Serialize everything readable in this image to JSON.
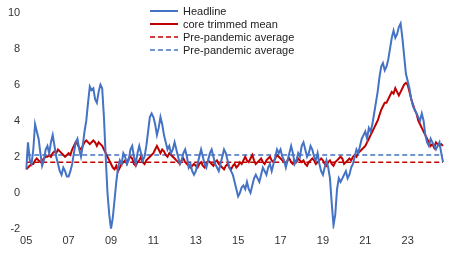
{
  "chart_data": {
    "type": "line",
    "categories": [
      "05",
      null,
      null,
      null,
      null,
      null,
      null,
      null,
      null,
      null,
      null,
      null,
      null,
      null,
      null,
      null,
      null,
      null,
      null,
      null,
      null,
      null,
      null,
      null,
      "07",
      null,
      null,
      null,
      null,
      null,
      null,
      null,
      null,
      null,
      null,
      null,
      null,
      null,
      null,
      null,
      null,
      null,
      null,
      null,
      null,
      null,
      null,
      null,
      "09",
      null,
      null,
      null,
      null,
      null,
      null,
      null,
      null,
      null,
      null,
      null,
      null,
      null,
      null,
      null,
      null,
      null,
      null,
      null,
      null,
      null,
      null,
      null,
      "11",
      null,
      null,
      null,
      null,
      null,
      null,
      null,
      null,
      null,
      null,
      null,
      null,
      null,
      null,
      null,
      null,
      null,
      null,
      null,
      null,
      null,
      null,
      null,
      "13",
      null,
      null,
      null,
      null,
      null,
      null,
      null,
      null,
      null,
      null,
      null,
      null,
      null,
      null,
      null,
      null,
      null,
      null,
      null,
      null,
      null,
      null,
      null,
      "15",
      null,
      null,
      null,
      null,
      null,
      null,
      null,
      null,
      null,
      null,
      null,
      null,
      null,
      null,
      null,
      null,
      null,
      null,
      null,
      null,
      null,
      null,
      null,
      "17",
      null,
      null,
      null,
      null,
      null,
      null,
      null,
      null,
      null,
      null,
      null,
      null,
      null,
      null,
      null,
      null,
      null,
      null,
      null,
      null,
      null,
      null,
      null,
      "19",
      null,
      null,
      null,
      null,
      null,
      null,
      null,
      null,
      null,
      null,
      null,
      null,
      null,
      null,
      null,
      null,
      null,
      null,
      null,
      null,
      null,
      null,
      null,
      "21",
      null,
      null,
      null,
      null,
      null,
      null,
      null,
      null,
      null,
      null,
      null,
      null,
      null,
      null,
      null,
      null,
      null,
      null,
      null,
      null,
      null,
      null,
      null,
      "23",
      null,
      null,
      null,
      null,
      null,
      null,
      null,
      null,
      null,
      null,
      null,
      null,
      null,
      null,
      null,
      null,
      null,
      null,
      null,
      null
    ],
    "series": [
      {
        "name": "Headline",
        "color": "#4472c4",
        "line_style": "solid",
        "values": [
          1.3,
          2.8,
          1.8,
          1.6,
          2.4,
          3.8,
          3.4,
          3.0,
          2.2,
          1.5,
          1.8,
          2.4,
          2.6,
          2.2,
          2.8,
          3.2,
          2.6,
          2.0,
          1.6,
          1.2,
          1.0,
          1.4,
          1.2,
          0.9,
          0.9,
          1.2,
          1.6,
          2.2,
          2.8,
          3.0,
          2.4,
          2.0,
          2.6,
          3.4,
          4.0,
          5.0,
          5.9,
          5.7,
          5.8,
          5.2,
          5.0,
          5.6,
          6.0,
          5.8,
          4.2,
          2.0,
          0.0,
          -1.2,
          -2.0,
          -1.4,
          -0.4,
          0.6,
          1.4,
          1.8,
          1.6,
          2.2,
          2.0,
          1.6,
          1.8,
          2.4,
          2.6,
          2.0,
          1.6,
          2.2,
          2.6,
          2.2,
          1.8,
          2.0,
          2.6,
          3.4,
          4.2,
          4.4,
          4.2,
          3.8,
          3.2,
          3.6,
          4.2,
          3.8,
          3.2,
          2.8,
          2.4,
          2.6,
          2.2,
          2.4,
          2.8,
          2.4,
          2.0,
          1.6,
          1.8,
          2.2,
          2.4,
          2.0,
          1.4,
          1.6,
          1.2,
          1.0,
          1.2,
          1.6,
          2.0,
          2.4,
          2.0,
          1.6,
          1.4,
          1.8,
          2.2,
          2.4,
          2.0,
          1.6,
          1.4,
          1.2,
          1.6,
          2.0,
          2.4,
          2.2,
          1.8,
          1.4,
          1.2,
          1.0,
          0.6,
          0.2,
          -0.2,
          0.0,
          0.3,
          0.4,
          0.2,
          0.6,
          0.2,
          0.0,
          0.4,
          0.8,
          1.0,
          0.8,
          0.6,
          1.0,
          1.4,
          1.2,
          1.0,
          1.4,
          1.6,
          1.2,
          1.6,
          2.0,
          2.4,
          2.2,
          2.4,
          2.0,
          1.8,
          1.4,
          1.8,
          2.2,
          2.6,
          2.2,
          1.6,
          1.8,
          2.2,
          2.0,
          2.6,
          2.8,
          2.4,
          2.0,
          2.2,
          2.6,
          2.4,
          2.0,
          1.8,
          2.2,
          1.6,
          1.2,
          1.0,
          1.4,
          1.8,
          1.4,
          0.8,
          -0.6,
          -1.8,
          -1.2,
          0.2,
          0.8,
          0.6,
          0.8,
          1.0,
          1.2,
          0.8,
          1.0,
          1.4,
          1.6,
          2.0,
          2.4,
          2.2,
          2.6,
          3.0,
          3.2,
          3.4,
          3.0,
          3.6,
          3.4,
          3.8,
          4.4,
          5.0,
          5.6,
          6.4,
          7.0,
          7.2,
          6.8,
          7.0,
          7.4,
          8.0,
          8.6,
          9.0,
          8.6,
          8.8,
          9.2,
          9.4,
          8.6,
          7.6,
          6.6,
          6.2,
          5.8,
          5.2,
          4.8,
          4.6,
          4.4,
          4.2,
          4.0,
          4.4,
          4.0,
          3.2,
          2.8,
          2.6,
          3.0,
          2.8,
          2.6,
          2.4,
          2.6,
          2.8,
          2.2,
          1.7
        ]
      },
      {
        "name": "core trimmed mean",
        "color": "#c00000",
        "line_style": "solid",
        "values": [
          1.3,
          1.4,
          1.5,
          1.6,
          1.6,
          1.8,
          1.9,
          1.8,
          1.7,
          1.8,
          1.9,
          2.0,
          2.0,
          2.1,
          2.0,
          2.2,
          2.3,
          2.2,
          2.4,
          2.3,
          2.2,
          2.1,
          2.0,
          2.1,
          2.2,
          2.1,
          2.4,
          2.6,
          2.8,
          2.7,
          2.5,
          2.4,
          2.6,
          2.8,
          2.9,
          2.8,
          2.7,
          2.8,
          2.9,
          2.8,
          2.6,
          2.8,
          2.7,
          2.6,
          2.4,
          2.2,
          2.0,
          1.8,
          1.6,
          1.4,
          1.3,
          1.5,
          1.2,
          1.4,
          1.6,
          1.7,
          1.8,
          1.6,
          1.9,
          2.0,
          1.9,
          1.6,
          1.5,
          1.7,
          1.8,
          2.0,
          1.7,
          1.6,
          1.8,
          1.9,
          2.0,
          2.1,
          2.2,
          2.4,
          2.6,
          2.4,
          2.2,
          2.4,
          2.3,
          2.1,
          2.0,
          2.2,
          2.1,
          2.0,
          1.9,
          1.8,
          1.7,
          1.6,
          1.8,
          1.9,
          1.7,
          1.6,
          1.5,
          1.4,
          1.5,
          1.6,
          1.5,
          1.4,
          1.6,
          1.7,
          1.5,
          1.4,
          1.6,
          1.8,
          1.7,
          1.6,
          1.5,
          1.7,
          1.8,
          1.6,
          1.5,
          1.4,
          1.3,
          1.5,
          1.6,
          1.4,
          1.3,
          1.5,
          1.6,
          1.4,
          1.5,
          1.7,
          1.6,
          1.8,
          2.0,
          1.8,
          1.7,
          1.9,
          2.1,
          1.8,
          1.6,
          1.7,
          1.8,
          1.9,
          1.7,
          1.6,
          1.8,
          1.9,
          2.0,
          1.8,
          1.7,
          1.9,
          2.1,
          2.0,
          1.9,
          1.8,
          1.7,
          1.6,
          1.8,
          1.9,
          1.7,
          1.6,
          1.8,
          1.7,
          1.9,
          1.8,
          1.7,
          1.8,
          1.6,
          1.5,
          1.7,
          1.8,
          1.9,
          1.8,
          1.6,
          1.7,
          1.8,
          1.9,
          1.8,
          1.6,
          1.5,
          1.7,
          1.8,
          1.6,
          1.5,
          1.7,
          1.8,
          1.9,
          2.0,
          1.9,
          1.6,
          1.7,
          1.8,
          1.9,
          1.8,
          2.0,
          2.1,
          2.0,
          2.2,
          2.3,
          2.4,
          2.5,
          2.6,
          2.8,
          3.0,
          3.2,
          3.4,
          3.6,
          3.8,
          4.0,
          4.3,
          4.6,
          4.8,
          5.0,
          5.0,
          5.2,
          5.4,
          5.6,
          5.5,
          5.8,
          5.6,
          5.4,
          5.6,
          5.8,
          6.0,
          6.1,
          6.0,
          5.6,
          5.2,
          4.9,
          4.6,
          4.4,
          4.0,
          3.8,
          3.6,
          3.4,
          3.2,
          3.0,
          2.8,
          2.6,
          2.7,
          2.5,
          2.8,
          2.7,
          2.6,
          2.7,
          2.6
        ]
      },
      {
        "name": "Pre-pandemic average",
        "color": "#c00000",
        "line_style": "dashed",
        "values": [
          1.7,
          1.7,
          1.7,
          1.7,
          1.7,
          1.7,
          1.7,
          1.7,
          1.7,
          1.7,
          1.7,
          1.7,
          1.7,
          1.7,
          1.7,
          1.7,
          1.7,
          1.7,
          1.7,
          1.7,
          1.7,
          1.7,
          1.7,
          1.7,
          1.7,
          1.7,
          1.7,
          1.7,
          1.7,
          1.7,
          1.7,
          1.7,
          1.7,
          1.7,
          1.7,
          1.7,
          1.7,
          1.7,
          1.7,
          1.7,
          1.7,
          1.7,
          1.7,
          1.7,
          1.7,
          1.7,
          1.7,
          1.7,
          1.7,
          1.7,
          1.7,
          1.7,
          1.7,
          1.7,
          1.7,
          1.7,
          1.7,
          1.7,
          1.7,
          1.7,
          1.7,
          1.7,
          1.7,
          1.7,
          1.7,
          1.7,
          1.7,
          1.7,
          1.7,
          1.7,
          1.7,
          1.7,
          1.7,
          1.7,
          1.7,
          1.7,
          1.7,
          1.7,
          1.7,
          1.7,
          1.7,
          1.7,
          1.7,
          1.7,
          1.7,
          1.7,
          1.7,
          1.7,
          1.7,
          1.7,
          1.7,
          1.7,
          1.7,
          1.7,
          1.7,
          1.7,
          1.7,
          1.7,
          1.7,
          1.7,
          1.7,
          1.7,
          1.7,
          1.7,
          1.7,
          1.7,
          1.7,
          1.7,
          1.7,
          1.7,
          1.7,
          1.7,
          1.7,
          1.7,
          1.7,
          1.7,
          1.7,
          1.7,
          1.7,
          1.7,
          1.7,
          1.7,
          1.7,
          1.7,
          1.7,
          1.7,
          1.7,
          1.7,
          1.7,
          1.7,
          1.7,
          1.7,
          1.7,
          1.7,
          1.7,
          1.7,
          1.7,
          1.7,
          1.7,
          1.7,
          1.7,
          1.7,
          1.7,
          1.7,
          1.7,
          1.7,
          1.7,
          1.7,
          1.7,
          1.7,
          1.7,
          1.7,
          1.7,
          1.7,
          1.7,
          1.7,
          1.7,
          1.7,
          1.7,
          1.7,
          1.7,
          1.7,
          1.7,
          1.7,
          1.7,
          1.7,
          1.7,
          1.7,
          1.7,
          1.7,
          1.7,
          1.7,
          1.7,
          1.7,
          1.7,
          1.7,
          1.7,
          1.7,
          1.7,
          1.7,
          1.7,
          1.7,
          1.7,
          1.7,
          1.7,
          1.7,
          1.7,
          1.7,
          1.7,
          1.7,
          1.7,
          1.7,
          1.7,
          1.7,
          1.7,
          1.7,
          1.7,
          1.7,
          1.7,
          1.7,
          1.7,
          1.7,
          1.7,
          1.7,
          1.7,
          1.7,
          1.7,
          1.7,
          1.7,
          1.7,
          1.7,
          1.7,
          1.7,
          1.7,
          1.7,
          1.7,
          1.7,
          1.7,
          1.7,
          1.7,
          1.7,
          1.7,
          1.7,
          1.7,
          1.7,
          1.7,
          1.7,
          1.7,
          1.7,
          1.7,
          1.7,
          1.7,
          1.7,
          1.7,
          1.7,
          1.7,
          1.7
        ]
      },
      {
        "name": "Pre-pandemic average",
        "color": "#4472c4",
        "line_style": "dashed",
        "values": [
          2.1,
          2.1,
          2.1,
          2.1,
          2.1,
          2.1,
          2.1,
          2.1,
          2.1,
          2.1,
          2.1,
          2.1,
          2.1,
          2.1,
          2.1,
          2.1,
          2.1,
          2.1,
          2.1,
          2.1,
          2.1,
          2.1,
          2.1,
          2.1,
          2.1,
          2.1,
          2.1,
          2.1,
          2.1,
          2.1,
          2.1,
          2.1,
          2.1,
          2.1,
          2.1,
          2.1,
          2.1,
          2.1,
          2.1,
          2.1,
          2.1,
          2.1,
          2.1,
          2.1,
          2.1,
          2.1,
          2.1,
          2.1,
          2.1,
          2.1,
          2.1,
          2.1,
          2.1,
          2.1,
          2.1,
          2.1,
          2.1,
          2.1,
          2.1,
          2.1,
          2.1,
          2.1,
          2.1,
          2.1,
          2.1,
          2.1,
          2.1,
          2.1,
          2.1,
          2.1,
          2.1,
          2.1,
          2.1,
          2.1,
          2.1,
          2.1,
          2.1,
          2.1,
          2.1,
          2.1,
          2.1,
          2.1,
          2.1,
          2.1,
          2.1,
          2.1,
          2.1,
          2.1,
          2.1,
          2.1,
          2.1,
          2.1,
          2.1,
          2.1,
          2.1,
          2.1,
          2.1,
          2.1,
          2.1,
          2.1,
          2.1,
          2.1,
          2.1,
          2.1,
          2.1,
          2.1,
          2.1,
          2.1,
          2.1,
          2.1,
          2.1,
          2.1,
          2.1,
          2.1,
          2.1,
          2.1,
          2.1,
          2.1,
          2.1,
          2.1,
          2.1,
          2.1,
          2.1,
          2.1,
          2.1,
          2.1,
          2.1,
          2.1,
          2.1,
          2.1,
          2.1,
          2.1,
          2.1,
          2.1,
          2.1,
          2.1,
          2.1,
          2.1,
          2.1,
          2.1,
          2.1,
          2.1,
          2.1,
          2.1,
          2.1,
          2.1,
          2.1,
          2.1,
          2.1,
          2.1,
          2.1,
          2.1,
          2.1,
          2.1,
          2.1,
          2.1,
          2.1,
          2.1,
          2.1,
          2.1,
          2.1,
          2.1,
          2.1,
          2.1,
          2.1,
          2.1,
          2.1,
          2.1,
          2.1,
          2.1,
          2.1,
          2.1,
          2.1,
          2.1,
          2.1,
          2.1,
          2.1,
          2.1,
          2.1,
          2.1,
          2.1,
          2.1,
          2.1,
          2.1,
          2.1,
          2.1,
          2.1,
          2.1,
          2.1,
          2.1,
          2.1,
          2.1,
          2.1,
          2.1,
          2.1,
          2.1,
          2.1,
          2.1,
          2.1,
          2.1,
          2.1,
          2.1,
          2.1,
          2.1,
          2.1,
          2.1,
          2.1,
          2.1,
          2.1,
          2.1,
          2.1,
          2.1,
          2.1,
          2.1,
          2.1,
          2.1,
          2.1,
          2.1,
          2.1,
          2.1,
          2.1,
          2.1,
          2.1,
          2.1,
          2.1,
          2.1,
          2.1,
          2.1,
          2.1,
          2.1,
          2.1,
          2.1,
          2.1,
          2.1,
          2.1,
          2.1,
          2.1
        ]
      }
    ],
    "ylim": [
      -2,
      10
    ],
    "yticks": [
      -2,
      0,
      2,
      4,
      6,
      8,
      10
    ],
    "grid": false,
    "legend": "top"
  }
}
